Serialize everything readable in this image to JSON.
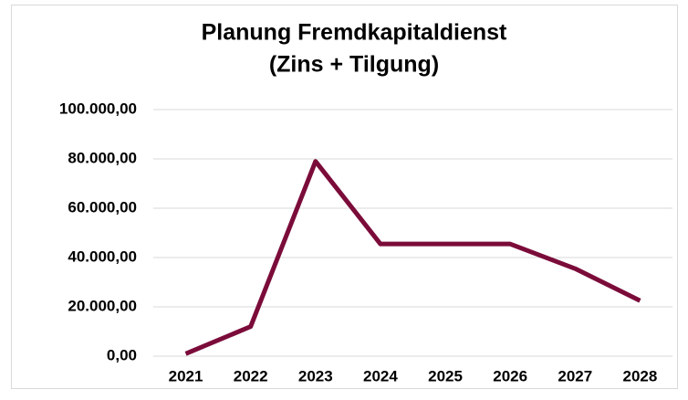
{
  "chart_data": {
    "type": "line",
    "title": [
      "Planung Fremdkapitaldienst",
      "(Zins + Tilgung)"
    ],
    "categories": [
      "2021",
      "2022",
      "2023",
      "2024",
      "2025",
      "2026",
      "2027",
      "2028"
    ],
    "series": [
      {
        "color": "#7b0c3a",
        "values": [
          1000,
          12000,
          79000,
          45500,
          45500,
          45500,
          35500,
          22500
        ]
      }
    ],
    "ylim": [
      0,
      100000
    ],
    "yticks": [
      {
        "value": 0,
        "label": "0,00"
      },
      {
        "value": 20000,
        "label": "20.000,00"
      },
      {
        "value": 40000,
        "label": "40.000,00"
      },
      {
        "value": 60000,
        "label": "60.000,00"
      },
      {
        "value": 80000,
        "label": "80.000,00"
      },
      {
        "value": 100000,
        "label": "100.000,00"
      }
    ],
    "grid": true
  }
}
